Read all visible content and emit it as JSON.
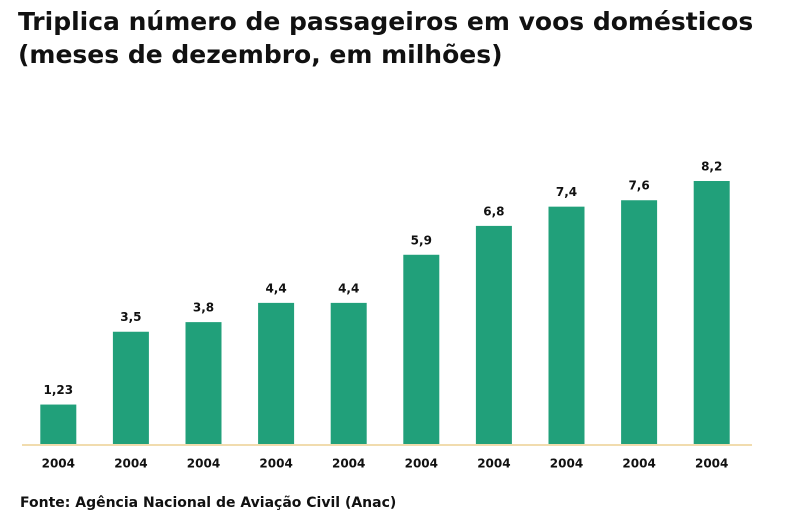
{
  "chart_data": {
    "type": "bar",
    "title": "Triplica número de passageiros em voos domésticos",
    "subtitle": "(meses de dezembro, em milhões)",
    "categories": [
      "2004",
      "2004",
      "2004",
      "2004",
      "2004",
      "2004",
      "2004",
      "2004",
      "2004",
      "2004"
    ],
    "values": [
      1.23,
      3.5,
      3.8,
      4.4,
      4.4,
      5.9,
      6.8,
      7.4,
      7.6,
      8.2
    ],
    "value_labels": [
      "1,23",
      "3,5",
      "3,8",
      "4,4",
      "4,4",
      "5,9",
      "6,8",
      "7,4",
      "7,6",
      "8,2"
    ],
    "color": "#21a07a",
    "source": "Fonte: Agência Nacional de Aviação Civil (Anac)"
  }
}
